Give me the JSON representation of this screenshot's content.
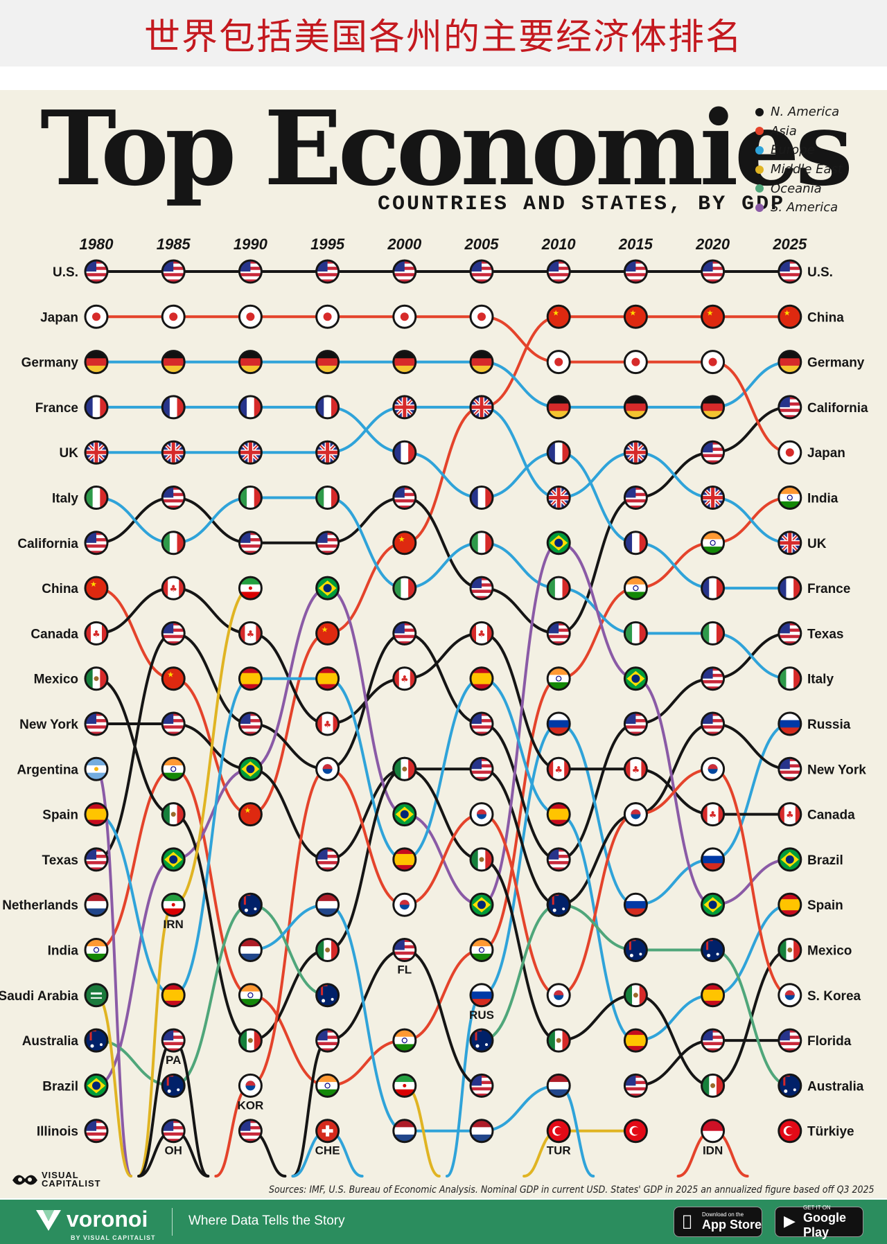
{
  "banner": {
    "title": "世界包括美国各州的主要经济体排名"
  },
  "header": {
    "title": "Top Economies",
    "subtitle": "COUNTRIES AND STATES, BY GDP"
  },
  "legend": [
    {
      "label": "N. America",
      "color": "#151515"
    },
    {
      "label": "Asia",
      "color": "#e4432b"
    },
    {
      "label": "Europe",
      "color": "#2fa3d9"
    },
    {
      "label": "Middle East",
      "color": "#e0b423"
    },
    {
      "label": "Oceania",
      "color": "#4fa67a"
    },
    {
      "label": "S. America",
      "color": "#8a5aa6"
    }
  ],
  "chart_data": {
    "type": "bump",
    "y_label": "Rank",
    "x": [
      "1980",
      "1985",
      "1990",
      "1995",
      "2000",
      "2005",
      "2010",
      "2015",
      "2020",
      "2025"
    ],
    "rank_labels_left": [
      "U.S.",
      "Japan",
      "Germany",
      "France",
      "UK",
      "Italy",
      "California",
      "China",
      "Canada",
      "Mexico",
      "New York",
      "Argentina",
      "Spain",
      "Texas",
      "Netherlands",
      "India",
      "Saudi Arabia",
      "Australia",
      "Brazil",
      "Illinois"
    ],
    "rank_labels_right": [
      "U.S.",
      "China",
      "Germany",
      "California",
      "Japan",
      "India",
      "UK",
      "France",
      "Texas",
      "Italy",
      "Russia",
      "New York",
      "Canada",
      "Brazil",
      "Spain",
      "Mexico",
      "S. Korea",
      "Florida",
      "Australia",
      "Türkiye"
    ],
    "series": [
      {
        "name": "U.S.",
        "region": "N. America",
        "code": "US",
        "ranks": [
          1,
          1,
          1,
          1,
          1,
          1,
          1,
          1,
          1,
          1
        ]
      },
      {
        "name": "China",
        "region": "Asia",
        "code": "CN",
        "ranks": [
          8,
          10,
          13,
          9,
          7,
          4,
          2,
          2,
          2,
          2
        ]
      },
      {
        "name": "Germany",
        "region": "Europe",
        "code": "DE",
        "ranks": [
          3,
          3,
          3,
          3,
          3,
          3,
          4,
          4,
          4,
          3
        ]
      },
      {
        "name": "California",
        "region": "N. America",
        "code": "US",
        "ranks": [
          7,
          6,
          7,
          7,
          6,
          8,
          9,
          6,
          5,
          4
        ]
      },
      {
        "name": "Japan",
        "region": "Asia",
        "code": "JP",
        "ranks": [
          2,
          2,
          2,
          2,
          2,
          2,
          3,
          3,
          3,
          5
        ]
      },
      {
        "name": "India",
        "region": "Asia",
        "code": "IN",
        "ranks": [
          16,
          12,
          17,
          19,
          18,
          16,
          10,
          8,
          7,
          6
        ]
      },
      {
        "name": "UK",
        "region": "Europe",
        "code": "GB",
        "ranks": [
          5,
          5,
          5,
          5,
          4,
          4,
          6,
          5,
          6,
          7
        ]
      },
      {
        "name": "France",
        "region": "Europe",
        "code": "FR",
        "ranks": [
          4,
          4,
          4,
          4,
          5,
          6,
          5,
          7,
          8,
          8
        ]
      },
      {
        "name": "Texas",
        "region": "N. America",
        "code": "US",
        "ranks": [
          14,
          9,
          11,
          12,
          9,
          11,
          14,
          11,
          10,
          9
        ]
      },
      {
        "name": "Italy",
        "region": "Europe",
        "code": "IT",
        "ranks": [
          6,
          7,
          6,
          6,
          8,
          7,
          8,
          9,
          9,
          10
        ]
      },
      {
        "name": "Russia",
        "region": null,
        "code": "RU",
        "ranks": [
          null,
          null,
          null,
          null,
          null,
          17,
          11,
          15,
          14,
          11
        ]
      },
      {
        "name": "New York",
        "region": "N. America",
        "code": "US",
        "ranks": [
          11,
          11,
          12,
          14,
          12,
          12,
          15,
          13,
          11,
          12
        ]
      },
      {
        "name": "Canada",
        "region": "N. America",
        "code": "CA",
        "ranks": [
          9,
          8,
          9,
          11,
          10,
          9,
          12,
          12,
          13,
          13
        ]
      },
      {
        "name": "Brazil",
        "region": "S. America",
        "code": "BR",
        "ranks": [
          19,
          14,
          12,
          8,
          13,
          15,
          7,
          10,
          15,
          14
        ]
      },
      {
        "name": "Spain",
        "region": "Europe",
        "code": "ES",
        "ranks": [
          13,
          17,
          10,
          10,
          14,
          10,
          13,
          18,
          17,
          15
        ]
      },
      {
        "name": "Mexico",
        "region": "N. America",
        "code": "MX",
        "ranks": [
          10,
          13,
          18,
          16,
          12,
          14,
          18,
          17,
          19,
          16
        ]
      },
      {
        "name": "S. Korea",
        "region": "Asia",
        "code": "KR",
        "ranks": [
          null,
          null,
          19,
          12,
          15,
          13,
          17,
          13,
          12,
          17
        ]
      },
      {
        "name": "Florida",
        "region": "N. America",
        "code": "US",
        "ranks": [
          null,
          null,
          null,
          18,
          16,
          19,
          null,
          19,
          18,
          18
        ]
      },
      {
        "name": "Australia",
        "region": "Oceania",
        "code": "AU",
        "ranks": [
          18,
          19,
          15,
          17,
          null,
          18,
          15,
          16,
          16,
          19
        ]
      },
      {
        "name": "Türkiye",
        "region": "Middle East",
        "code": "TR",
        "ranks": [
          null,
          null,
          null,
          null,
          null,
          null,
          20,
          20,
          null,
          20
        ]
      },
      {
        "name": "Argentina",
        "region": "S. America",
        "code": "AR",
        "ranks": [
          12,
          null,
          null,
          null,
          null,
          null,
          null,
          null,
          null,
          null
        ]
      },
      {
        "name": "Netherlands",
        "region": "Europe",
        "code": "NL",
        "ranks": [
          15,
          null,
          16,
          15,
          20,
          20,
          19,
          null,
          null,
          null
        ]
      },
      {
        "name": "Saudi Arabia",
        "region": "Middle East",
        "code": "SA",
        "ranks": [
          17,
          null,
          null,
          null,
          null,
          null,
          null,
          null,
          null,
          null
        ]
      },
      {
        "name": "Illinois",
        "region": "N. America",
        "code": "US",
        "ranks": [
          20,
          null,
          20,
          null,
          null,
          null,
          null,
          null,
          null,
          null
        ]
      },
      {
        "name": "Iran",
        "region": "Middle East",
        "code": "IR",
        "ranks": [
          null,
          15,
          8,
          null,
          19,
          null,
          null,
          null,
          null,
          null
        ]
      },
      {
        "name": "Pennsylvania",
        "region": "N. America",
        "code": "US",
        "ranks": [
          null,
          18,
          null,
          null,
          null,
          null,
          null,
          null,
          null,
          null
        ]
      },
      {
        "name": "Ohio",
        "region": "N. America",
        "code": "US",
        "ranks": [
          null,
          20,
          null,
          null,
          null,
          null,
          null,
          null,
          null,
          null
        ]
      },
      {
        "name": "Switzerland",
        "region": "Europe",
        "code": "CH",
        "ranks": [
          null,
          null,
          null,
          20,
          null,
          null,
          null,
          null,
          null,
          null
        ]
      },
      {
        "name": "Indonesia",
        "region": "Asia",
        "code": "ID",
        "ranks": [
          null,
          null,
          null,
          null,
          null,
          null,
          null,
          null,
          20,
          null
        ]
      }
    ],
    "point_labels": [
      {
        "text": "IRN",
        "year": "1985",
        "rank": 15
      },
      {
        "text": "PA",
        "year": "1985",
        "rank": 18
      },
      {
        "text": "OH",
        "year": "1985",
        "rank": 20
      },
      {
        "text": "KOR",
        "year": "1990",
        "rank": 19
      },
      {
        "text": "CHE",
        "year": "1995",
        "rank": 20
      },
      {
        "text": "FL",
        "year": "2000",
        "rank": 16
      },
      {
        "text": "RUS",
        "year": "2005",
        "rank": 17
      },
      {
        "text": "TUR",
        "year": "2010",
        "rank": 20
      },
      {
        "text": "IDN",
        "year": "2020",
        "rank": 20
      }
    ]
  },
  "source": "Sources: IMF, U.S. Bureau of Economic Analysis. Nominal GDP in current USD. States' GDP in 2025 an annualized figure based off Q3 2025",
  "logo": {
    "line1": "VISUAL",
    "line2": "CAPITALIST"
  },
  "footer": {
    "brand": "voronoi",
    "brand_sub": "BY VISUAL CAPITALIST",
    "tagline": "Where Data Tells the Story",
    "appstore_small": "Download on the",
    "appstore_big": "App Store",
    "googleplay_small": "GET IT ON",
    "googleplay_big": "Google Play"
  }
}
